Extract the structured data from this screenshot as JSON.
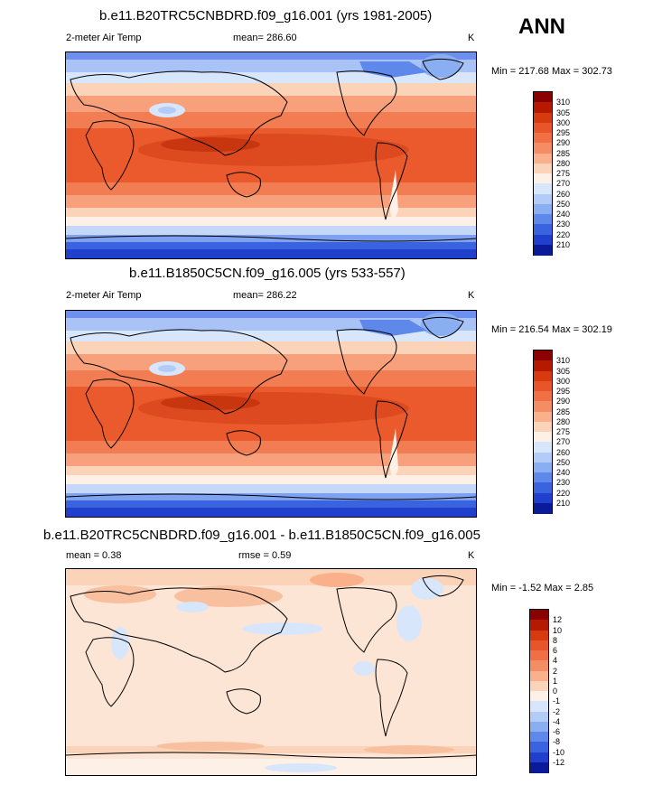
{
  "season": "ANN",
  "panels": [
    {
      "title": "b.e11.B20TRC5CNBDRD.f09_g16.001 (yrs 1981-2005)",
      "left_label": "2-meter Air Temp",
      "center_label": "mean= 286.60",
      "units": "K",
      "minmax": "Min = 217.68 Max = 302.73",
      "colorbar_labels": [
        "310",
        "305",
        "300",
        "295",
        "290",
        "285",
        "280",
        "275",
        "270",
        "260",
        "250",
        "240",
        "230",
        "220",
        "210"
      ],
      "colorbar_colors": [
        "#8b0000",
        "#b51a00",
        "#d83a10",
        "#e9552a",
        "#f06f45",
        "#f58d64",
        "#f9b08b",
        "#fbd3b9",
        "#fdf0e6",
        "#d8e6fb",
        "#b3ccf7",
        "#8aaef2",
        "#5f88eb",
        "#3a63e0",
        "#1f3fcc",
        "#0a1a99"
      ]
    },
    {
      "title": "b.e11.B1850C5CN.f09_g16.005 (yrs 533-557)",
      "left_label": "2-meter Air Temp",
      "center_label": "mean= 286.22",
      "units": "K",
      "minmax": "Min = 216.54 Max = 302.19",
      "colorbar_labels": [
        "310",
        "305",
        "300",
        "295",
        "290",
        "285",
        "280",
        "275",
        "270",
        "260",
        "250",
        "240",
        "230",
        "220",
        "210"
      ],
      "colorbar_colors": [
        "#8b0000",
        "#b51a00",
        "#d83a10",
        "#e9552a",
        "#f06f45",
        "#f58d64",
        "#f9b08b",
        "#fbd3b9",
        "#fdf0e6",
        "#d8e6fb",
        "#b3ccf7",
        "#8aaef2",
        "#5f88eb",
        "#3a63e0",
        "#1f3fcc",
        "#0a1a99"
      ]
    },
    {
      "title": "b.e11.B20TRC5CNBDRD.f09_g16.001 - b.e11.B1850C5CN.f09_g16.005",
      "left_label": "mean =   0.38",
      "center_label": "rmse =   0.59",
      "units": "K",
      "minmax": "Min =  -1.52 Max =   2.85",
      "colorbar_labels": [
        "12",
        "10",
        "8",
        "6",
        "4",
        "2",
        "1",
        "0",
        "-1",
        "-2",
        "-4",
        "-6",
        "-8",
        "-10",
        "-12"
      ],
      "colorbar_colors": [
        "#8b0000",
        "#b51a00",
        "#d83a10",
        "#e9552a",
        "#f06f45",
        "#f58d64",
        "#f9b08b",
        "#fbd3b9",
        "#fdf0e6",
        "#d8e6fb",
        "#b3ccf7",
        "#8aaef2",
        "#5f88eb",
        "#3a63e0",
        "#1f3fcc",
        "#0a1a99"
      ]
    }
  ]
}
